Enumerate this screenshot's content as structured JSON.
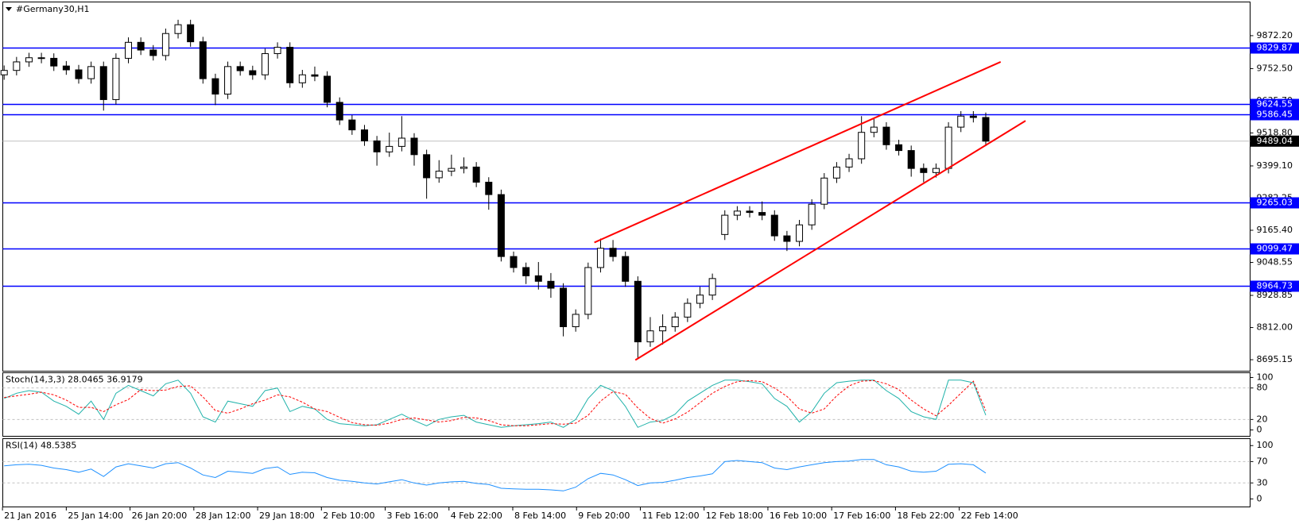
{
  "chart_data": {
    "type": "candlestick",
    "title": "#Germany30,H1",
    "open": [
      9730,
      9746,
      9777,
      9792,
      9790,
      9762,
      9748,
      9716,
      9760,
      9640,
      9790,
      9848,
      9820,
      9800,
      9880,
      9912,
      9850,
      9716,
      9660,
      9760,
      9745,
      9730,
      9807,
      9830,
      9701,
      9730,
      9725,
      9630,
      9566,
      9530,
      9490,
      9450,
      9470,
      9500,
      9440,
      9356,
      9380,
      9390,
      9395,
      9340,
      9295,
      9070,
      9030,
      9000,
      8980,
      8955,
      8815,
      8860,
      9030,
      9100,
      9070,
      8980,
      8760,
      8800,
      8815,
      8850,
      8900,
      8930,
      9150,
      9220,
      9235,
      9230,
      9220,
      9145,
      9125,
      9185,
      9260,
      9355,
      9395,
      9425,
      9521,
      9540,
      9476,
      9455,
      9390,
      9375,
      9390,
      9540,
      9580,
      9575
    ],
    "high": [
      9764,
      9795,
      9810,
      9810,
      9808,
      9780,
      9766,
      9778,
      9778,
      9808,
      9866,
      9866,
      9838,
      9898,
      9930,
      9930,
      9868,
      9734,
      9778,
      9778,
      9763,
      9825,
      9848,
      9848,
      9748,
      9760,
      9743,
      9648,
      9584,
      9548,
      9508,
      9520,
      9580,
      9518,
      9458,
      9420,
      9440,
      9430,
      9413,
      9358,
      9313,
      9088,
      9048,
      9050,
      9010,
      8973,
      8878,
      9048,
      9135,
      9130,
      9088,
      8998,
      8850,
      8860,
      8868,
      8918,
      8960,
      9008,
      9238,
      9253,
      9253,
      9270,
      9238,
      9163,
      9203,
      9278,
      9373,
      9413,
      9443,
      9580,
      9570,
      9558,
      9494,
      9473,
      9408,
      9408,
      9558,
      9598,
      9598,
      9593
    ],
    "low": [
      9712,
      9728,
      9759,
      9772,
      9744,
      9730,
      9698,
      9698,
      9600,
      9622,
      9772,
      9802,
      9782,
      9782,
      9862,
      9832,
      9698,
      9620,
      9642,
      9727,
      9712,
      9712,
      9789,
      9683,
      9683,
      9707,
      9612,
      9548,
      9512,
      9472,
      9400,
      9432,
      9452,
      9400,
      9280,
      9338,
      9362,
      9372,
      9322,
      9240,
      9052,
      9012,
      8970,
      8950,
      8920,
      8780,
      8797,
      8842,
      9012,
      9052,
      8960,
      8700,
      8742,
      8750,
      8797,
      8832,
      8882,
      8912,
      9130,
      9202,
      9212,
      9202,
      9127,
      9090,
      9107,
      9167,
      9242,
      9337,
      9377,
      9407,
      9503,
      9458,
      9437,
      9360,
      9340,
      9357,
      9372,
      9522,
      9557,
      9471
    ],
    "close": [
      9746,
      9777,
      9792,
      9790,
      9762,
      9748,
      9716,
      9760,
      9640,
      9790,
      9848,
      9820,
      9800,
      9880,
      9912,
      9850,
      9716,
      9660,
      9760,
      9745,
      9730,
      9807,
      9830,
      9701,
      9730,
      9725,
      9630,
      9566,
      9530,
      9490,
      9450,
      9470,
      9500,
      9440,
      9356,
      9380,
      9390,
      9395,
      9340,
      9295,
      9070,
      9030,
      9000,
      8980,
      8955,
      8815,
      8860,
      9030,
      9100,
      9070,
      8980,
      8760,
      8800,
      8815,
      8850,
      8900,
      8930,
      8990,
      9220,
      9235,
      9230,
      9220,
      9145,
      9125,
      9185,
      9260,
      9355,
      9395,
      9425,
      9521,
      9540,
      9476,
      9455,
      9390,
      9375,
      9390,
      9540,
      9580,
      9575,
      9489
    ],
    "up_color": "#ffffff",
    "down_color": "#000000",
    "ylim": [
      8655,
      9996
    ],
    "yticks": [
      {
        "value": 9872.2,
        "label": "9872.20"
      },
      {
        "value": 9752.5,
        "label": "9752.50"
      },
      {
        "value": 9635.7,
        "label": "9635.70"
      },
      {
        "value": 9518.8,
        "label": "9518.80"
      },
      {
        "value": 9399.1,
        "label": "9399.10"
      },
      {
        "value": 9282.25,
        "label": "9282.25"
      },
      {
        "value": 9165.4,
        "label": "9165.40"
      },
      {
        "value": 9048.55,
        "label": "9048.55"
      },
      {
        "value": 8928.85,
        "label": "8928.85"
      },
      {
        "value": 8812,
        "label": "8812.00"
      },
      {
        "value": 8695.15,
        "label": "8695.15"
      }
    ],
    "level_color": "#0000ff",
    "levels": [
      {
        "value": 9829.87,
        "label": "9829.87"
      },
      {
        "value": 9624.55,
        "label": "9624.55"
      },
      {
        "value": 9586.45,
        "label": "9586.45"
      },
      {
        "value": 9265.03,
        "label": "9265.03"
      },
      {
        "value": 9099.47,
        "label": "9099.47"
      },
      {
        "value": 8964.73,
        "label": "8964.73"
      }
    ],
    "current": {
      "value": 9489.04,
      "label": "9489.04"
    },
    "trendlines": [
      {
        "color": "#ff0000",
        "x": [
          47.5,
          80.2
        ],
        "y": [
          9121,
          9777
        ]
      },
      {
        "color": "#ff0000",
        "x": [
          50.8,
          82.2
        ],
        "y": [
          8694,
          9563
        ]
      }
    ],
    "time_labels": [
      "21 Jan 2016",
      "25 Jan 14:00",
      "26 Jan 20:00",
      "28 Jan 12:00",
      "29 Jan 18:00",
      "2 Feb 10:00",
      "3 Feb 16:00",
      "4 Feb 22:00",
      "8 Feb 14:00",
      "9 Feb 20:00",
      "11 Feb 12:00",
      "12 Feb 18:00",
      "16 Feb 10:00",
      "17 Feb 16:00",
      "18 Feb 22:00",
      "22 Feb 14:00"
    ],
    "indicators": [
      {
        "type": "line",
        "label": "Stoch(14,3,3) 28.0465 36.9179",
        "ylim": [
          -12,
          109
        ],
        "yticks": [
          100,
          80,
          20,
          0
        ],
        "levels": [
          80,
          20
        ],
        "series": [
          {
            "color": "#20b2aa",
            "values": [
              60,
              70,
              75,
              72,
              55,
              45,
              30,
              55,
              20,
              70,
              85,
              75,
              65,
              88,
              95,
              70,
              25,
              15,
              55,
              50,
              45,
              75,
              80,
              35,
              45,
              40,
              20,
              12,
              10,
              8,
              10,
              20,
              30,
              18,
              8,
              20,
              25,
              28,
              15,
              10,
              5,
              8,
              10,
              12,
              15,
              5,
              20,
              60,
              85,
              75,
              45,
              5,
              15,
              18,
              30,
              55,
              70,
              85,
              95,
              95,
              92,
              88,
              60,
              45,
              15,
              35,
              70,
              90,
              93,
              95,
              95,
              75,
              60,
              35,
              25,
              20,
              95,
              95,
              90,
              28.0465
            ]
          },
          {
            "color": "#ff0000",
            "dashed": true,
            "values": [
              62,
              65,
              68,
              72,
              67,
              57,
              43,
              43,
              35,
              48,
              58,
              77,
              75,
              76,
              83,
              84,
              63,
              37,
              32,
              40,
              50,
              57,
              67,
              63,
              53,
              40,
              35,
              24,
              14,
              10,
              9,
              13,
              20,
              23,
              19,
              15,
              18,
              24,
              23,
              18,
              10,
              8,
              8,
              10,
              12,
              11,
              13,
              28,
              55,
              73,
              68,
              42,
              22,
              13,
              21,
              34,
              52,
              70,
              83,
              92,
              94,
              92,
              80,
              64,
              40,
              32,
              40,
              65,
              84,
              93,
              94,
              88,
              77,
              57,
              40,
              27,
              47,
              70,
              93,
              36.9179
            ]
          }
        ]
      },
      {
        "type": "line",
        "label": "RSI(14) 48.5385",
        "ylim": [
          -15,
          113
        ],
        "yticks": [
          100,
          70,
          30,
          0
        ],
        "levels": [
          70,
          30
        ],
        "series": [
          {
            "color": "#1e90ff",
            "values": [
              62,
              64,
              65,
              63,
              58,
              55,
              50,
              56,
              42,
              60,
              66,
              62,
              58,
              66,
              68,
              58,
              45,
              40,
              52,
              50,
              48,
              57,
              60,
              46,
              50,
              49,
              40,
              35,
              33,
              30,
              28,
              32,
              36,
              30,
              26,
              30,
              32,
              33,
              29,
              27,
              20,
              19,
              18,
              18,
              17,
              15,
              22,
              38,
              48,
              45,
              36,
              25,
              30,
              31,
              35,
              40,
              43,
              47,
              70,
              72,
              70,
              68,
              58,
              55,
              60,
              64,
              68,
              70,
              71,
              74,
              74,
              64,
              60,
              52,
              50,
              52,
              65,
              66,
              64,
              48.5385
            ]
          }
        ]
      }
    ]
  }
}
